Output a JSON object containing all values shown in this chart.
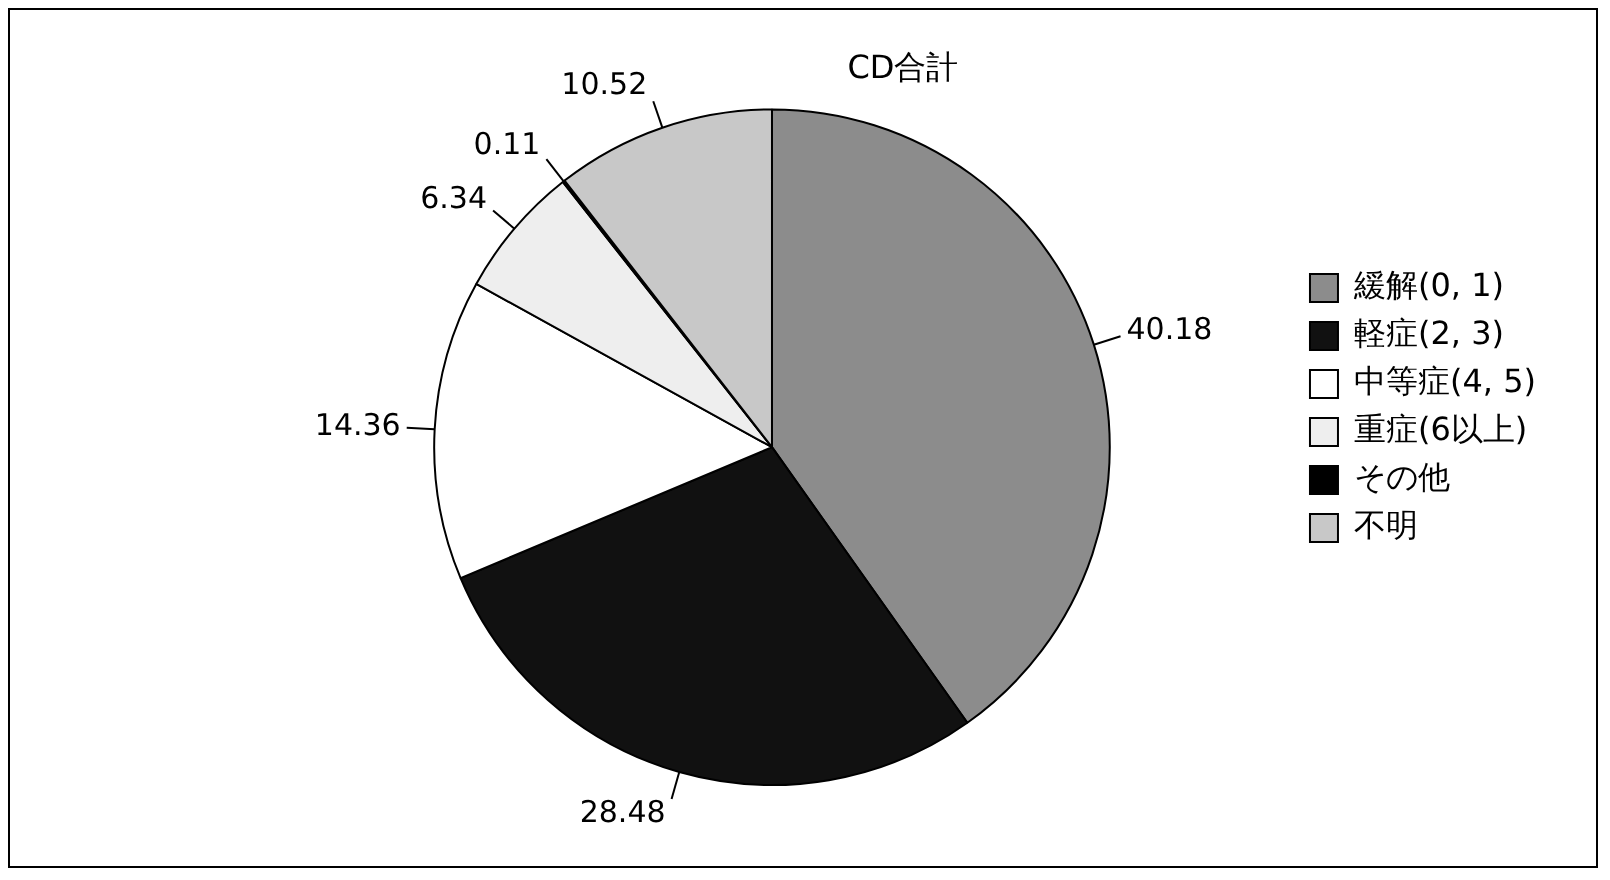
{
  "chart_data": {
    "type": "pie",
    "title": "CD合計",
    "categories": [
      "緩解(0, 1)",
      "軽症(2, 3)",
      "中等症(4, 5)",
      "重症(6以上)",
      "その他",
      "不明"
    ],
    "values": [
      40.18,
      28.48,
      14.36,
      6.34,
      0.11,
      10.52
    ],
    "colors": [
      "#8c8c8c",
      "#111111",
      "#ffffff",
      "#eeeeee",
      "#000000",
      "#c8c8c8"
    ],
    "data_labels": true,
    "legend": "right"
  }
}
